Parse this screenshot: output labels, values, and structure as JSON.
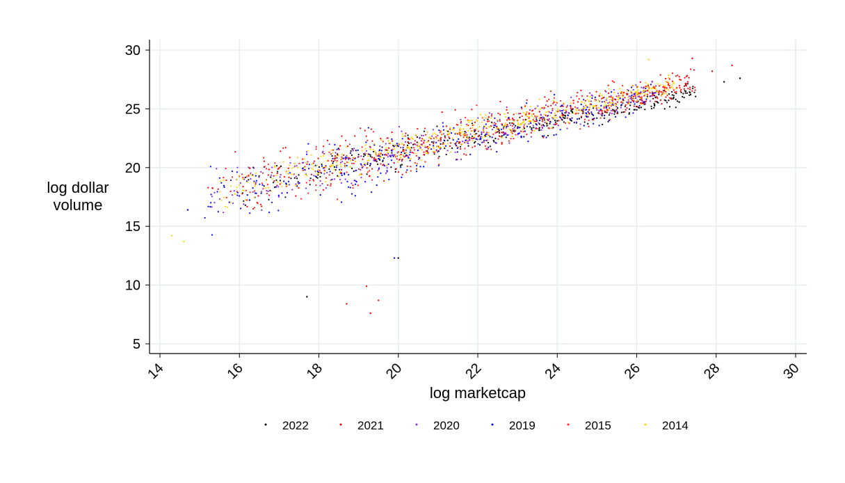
{
  "chart_data": {
    "type": "scatter",
    "title": "",
    "xlabel": "log marketcap",
    "ylabel_lines": [
      "log dollar",
      "volume"
    ],
    "xlim": [
      14,
      30
    ],
    "ylim": [
      5,
      30
    ],
    "xticks": [
      14,
      16,
      18,
      20,
      22,
      24,
      26,
      28,
      30
    ],
    "yticks": [
      5,
      10,
      15,
      20,
      25,
      30
    ],
    "xtick_labels": [
      "14",
      "16",
      "18",
      "20",
      "22",
      "24",
      "26",
      "28",
      "30"
    ],
    "ytick_labels": [
      "5",
      "10",
      "15",
      "20",
      "25",
      "30"
    ],
    "grid": true,
    "legend_position": "bottom",
    "series": [
      {
        "name": "2022",
        "color": "#000000",
        "shape": "dot",
        "cloud": {
          "x_range": [
            16,
            27.5
          ],
          "intercept": 7.2,
          "slope": 0.7,
          "spread": 1.0,
          "samples": 350
        }
      },
      {
        "name": "2021",
        "color": "#ff0000",
        "shape": "dot",
        "cloud": {
          "x_range": [
            15.2,
            27.5
          ],
          "intercept": 5.4,
          "slope": 0.8,
          "spread": 1.6,
          "samples": 400
        }
      },
      {
        "name": "2020",
        "color": "#8a2be2",
        "shape": "dot",
        "cloud": {
          "x_range": [
            15.2,
            26.5
          ],
          "intercept": 5.6,
          "slope": 0.79,
          "spread": 1.4,
          "samples": 300
        }
      },
      {
        "name": "2019",
        "color": "#0000ff",
        "shape": "dot",
        "cloud": {
          "x_range": [
            15.0,
            26.5
          ],
          "intercept": 5.0,
          "slope": 0.8,
          "spread": 1.5,
          "samples": 300
        }
      },
      {
        "name": "2015",
        "color": "#ff2020",
        "shape": "dot",
        "cloud": {
          "x_range": [
            15.5,
            26.8
          ],
          "intercept": 5.3,
          "slope": 0.8,
          "spread": 1.5,
          "samples": 300
        }
      },
      {
        "name": "2014",
        "color": "#ffd700",
        "shape": "dot",
        "cloud": {
          "x_range": [
            15.5,
            27.0
          ],
          "intercept": 5.8,
          "slope": 0.79,
          "spread": 1.0,
          "samples": 450
        }
      }
    ],
    "outliers": [
      {
        "x": 28.6,
        "y": 27.6,
        "series": "2022"
      },
      {
        "x": 28.2,
        "y": 27.3,
        "series": "2022"
      },
      {
        "x": 27.9,
        "y": 28.2,
        "series": "2021"
      },
      {
        "x": 28.4,
        "y": 28.7,
        "series": "2021"
      },
      {
        "x": 27.4,
        "y": 29.3,
        "series": "2021"
      },
      {
        "x": 26.3,
        "y": 29.2,
        "series": "2014"
      },
      {
        "x": 17.7,
        "y": 9.0,
        "series": "2022"
      },
      {
        "x": 19.3,
        "y": 7.6,
        "series": "2021"
      },
      {
        "x": 19.2,
        "y": 9.9,
        "series": "2021"
      },
      {
        "x": 18.7,
        "y": 8.4,
        "series": "2021"
      },
      {
        "x": 19.5,
        "y": 8.7,
        "series": "2021"
      },
      {
        "x": 14.3,
        "y": 14.2,
        "series": "2014"
      },
      {
        "x": 14.6,
        "y": 13.7,
        "series": "2014"
      },
      {
        "x": 14.7,
        "y": 16.4,
        "series": "2019"
      },
      {
        "x": 19.9,
        "y": 12.3,
        "series": "2019"
      },
      {
        "x": 20.0,
        "y": 12.3,
        "series": "2022"
      }
    ]
  }
}
